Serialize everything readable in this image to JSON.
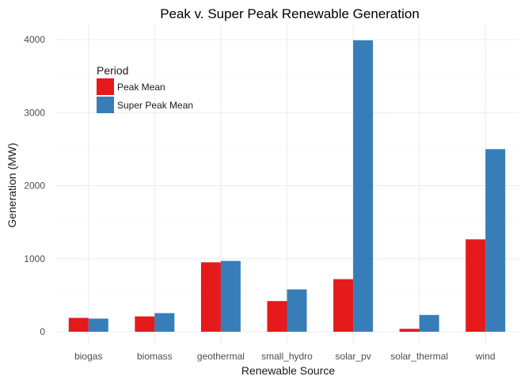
{
  "chart_data": {
    "type": "bar",
    "title": "Peak v. Super Peak Renewable Generation",
    "xlabel": "Renewable Source",
    "ylabel": "Generation (MW)",
    "categories": [
      "biogas",
      "biomass",
      "geothermal",
      "small_hydro",
      "solar_pv",
      "solar_thermal",
      "wind"
    ],
    "series": [
      {
        "name": "Peak Mean",
        "color": "#e41a1c",
        "values": [
          190,
          210,
          950,
          420,
          720,
          40,
          1265
        ]
      },
      {
        "name": "Super Peak Mean",
        "color": "#377eb8",
        "values": [
          180,
          255,
          970,
          580,
          3990,
          230,
          2500
        ]
      }
    ],
    "ylim": [
      0,
      4000
    ],
    "yticks": [
      0,
      1000,
      2000,
      3000,
      4000
    ],
    "grid": true,
    "legend": {
      "title": "Period",
      "placement": "top-left"
    }
  }
}
